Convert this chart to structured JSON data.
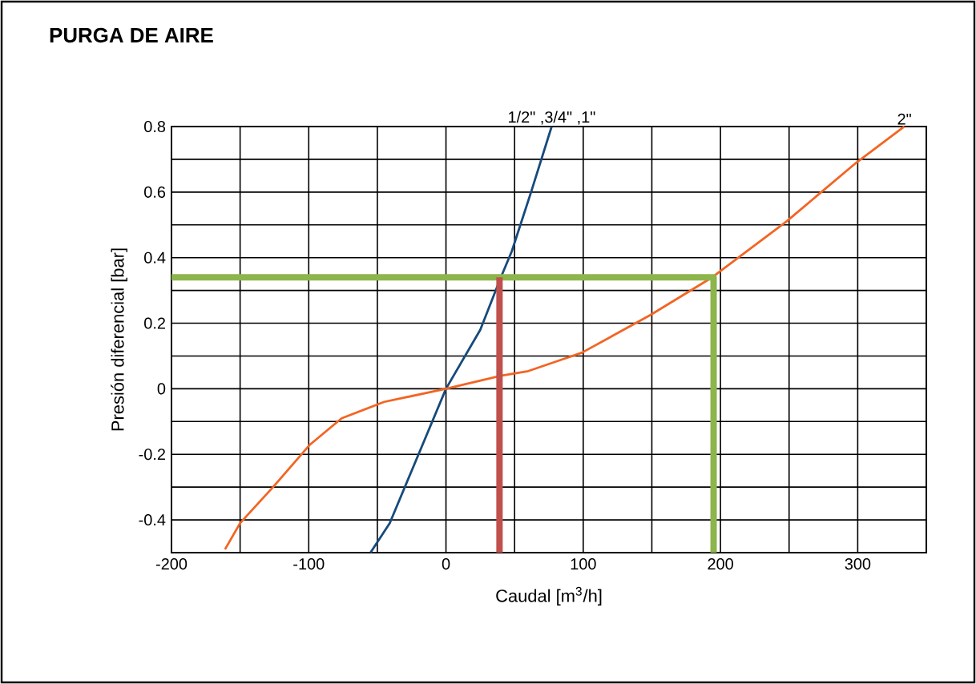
{
  "chart_data": {
    "type": "line",
    "title": "PURGA DE AIRE",
    "xlabel": "Caudal [m$^{3}$/h]",
    "ylabel": "Presión diferencial [bar]",
    "xlim": [
      -200,
      350
    ],
    "ylim": [
      -0.5,
      0.8
    ],
    "xticks": [
      -200,
      {
        "value": -150,
        "label": null
      },
      -100,
      {
        "value": -50,
        "label": null
      },
      0,
      {
        "value": 50,
        "label": null
      },
      100,
      {
        "value": 150,
        "label": null
      },
      200,
      {
        "value": 250,
        "label": null
      },
      300,
      {
        "value": 350,
        "label": null
      }
    ],
    "yticks": [
      {
        "value": -0.5,
        "label": null
      },
      -0.4,
      {
        "value": -0.3,
        "label": null
      },
      -0.2,
      {
        "value": -0.1,
        "label": null
      },
      0,
      {
        "value": 0.1,
        "label": null
      },
      0.2,
      {
        "value": 0.3,
        "label": null
      },
      0.4,
      {
        "value": 0.5,
        "label": null
      },
      0.6,
      {
        "value": 0.7,
        "label": null
      },
      0.8
    ],
    "grid": true,
    "series": [
      {
        "name": "1/2\" ,3/4\" ,1\"",
        "color": "#174a7c",
        "x": [
          -55,
          -41,
          -25,
          0,
          25,
          40,
          48,
          62,
          77
        ],
        "values": [
          -0.5,
          -0.41,
          -0.25,
          0,
          0.18,
          0.34,
          0.42,
          0.6,
          0.8
        ]
      },
      {
        "name": "2\"",
        "color": "#f26522",
        "x": [
          -161,
          -150,
          -126,
          -99,
          -76,
          -45,
          0,
          40,
          60,
          83,
          99,
          149,
          194,
          248,
          299,
          334
        ],
        "values": [
          -0.49,
          -0.41,
          -0.3,
          -0.17,
          -0.09,
          -0.04,
          0,
          0.04,
          0.054,
          0.087,
          0.11,
          0.225,
          0.34,
          0.51,
          0.69,
          0.8
        ]
      },
      {
        "color": "#8db54b",
        "x": [
          -200,
          195,
          195
        ],
        "values": [
          0.34,
          0.34,
          -0.5
        ]
      },
      {
        "color": "#c0504d",
        "x": [
          39,
          39
        ],
        "values": [
          -0.5,
          0.34
        ]
      }
    ]
  }
}
